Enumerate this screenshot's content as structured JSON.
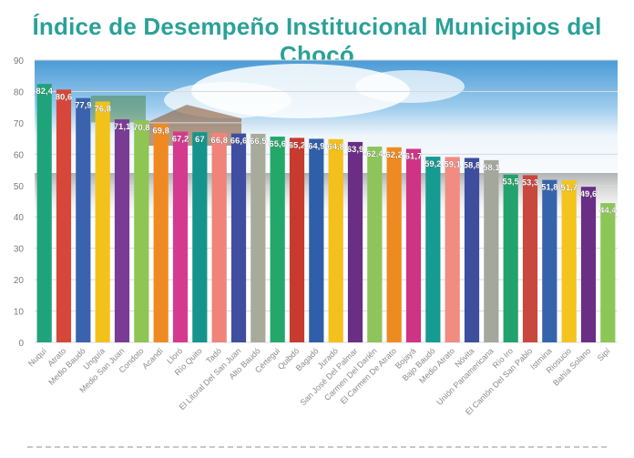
{
  "title": "Índice de Desempeño Institucional Municipios del Chocó",
  "chart_data": {
    "type": "bar",
    "title": "Índice de Desempeño Institucional Municipios del Chocó",
    "xlabel": "",
    "ylabel": "",
    "ylim": [
      0,
      90
    ],
    "yticks": [
      0,
      10,
      20,
      30,
      40,
      50,
      60,
      70,
      80,
      90
    ],
    "grid": true,
    "legend": "none",
    "categories": [
      "Nuquí",
      "Atrato",
      "Medio Baudó",
      "Unguía",
      "Medio San Juan",
      "Condoto",
      "Acandí",
      "Lloró",
      "Río Quito",
      "Tadó",
      "El Litoral Del San Juan",
      "Alto Baudó",
      "Cértegui",
      "Quibdó",
      "Bagadó",
      "Juradó",
      "San José Del Palmar",
      "Carmen Del Darién",
      "El Carmen De Atrato",
      "Bojayá",
      "Bajo Baudó",
      "Medio Atrato",
      "Nóvita",
      "Unión Panamericana",
      "Río Iro",
      "El Cantón Del San Pablo",
      "Istmina",
      "Riosucio",
      "Bahía Solano",
      "Sipí"
    ],
    "values": [
      82.4,
      80.6,
      77.9,
      76.8,
      71.1,
      70.8,
      69.8,
      67.2,
      67,
      66.8,
      66.6,
      66.5,
      65.6,
      65.2,
      64.9,
      64.8,
      63.9,
      62.4,
      62.2,
      61.7,
      59.2,
      59.1,
      58.8,
      58.1,
      53.5,
      53.3,
      51.8,
      51.7,
      49.6,
      44.4
    ],
    "value_labels": [
      "82,4",
      "80,6",
      "77,9",
      "76,8",
      "71,1",
      "70,8",
      "69,8",
      "67,2",
      "67",
      "66,8",
      "66,6",
      "66,5",
      "65,6",
      "65,2",
      "64,9",
      "64,8",
      "63,9",
      "62,4",
      "62,2",
      "61,7",
      "59,2",
      "59,1",
      "58,8",
      "58,1",
      "53,5",
      "53,3",
      "51,8",
      "51,7",
      "49,6",
      "44,4"
    ],
    "colors": [
      "#1fa37a",
      "#d6473a",
      "#3a62ae",
      "#f2c21b",
      "#7a3b94",
      "#8fc552",
      "#ef8a23",
      "#d43b8f",
      "#14948c",
      "#f0837a",
      "#3f4ea0",
      "#a9ab9a",
      "#23a86a",
      "#c73a2e",
      "#2f5fa8",
      "#f3c01c",
      "#6a2f85",
      "#8dc55a",
      "#ee8a22",
      "#cf3384",
      "#159b91",
      "#f28b80",
      "#3d4e9e",
      "#a3a79c",
      "#22a26c",
      "#c9483d",
      "#3564ad",
      "#f4c31e",
      "#6a2e86",
      "#8cc657"
    ]
  }
}
